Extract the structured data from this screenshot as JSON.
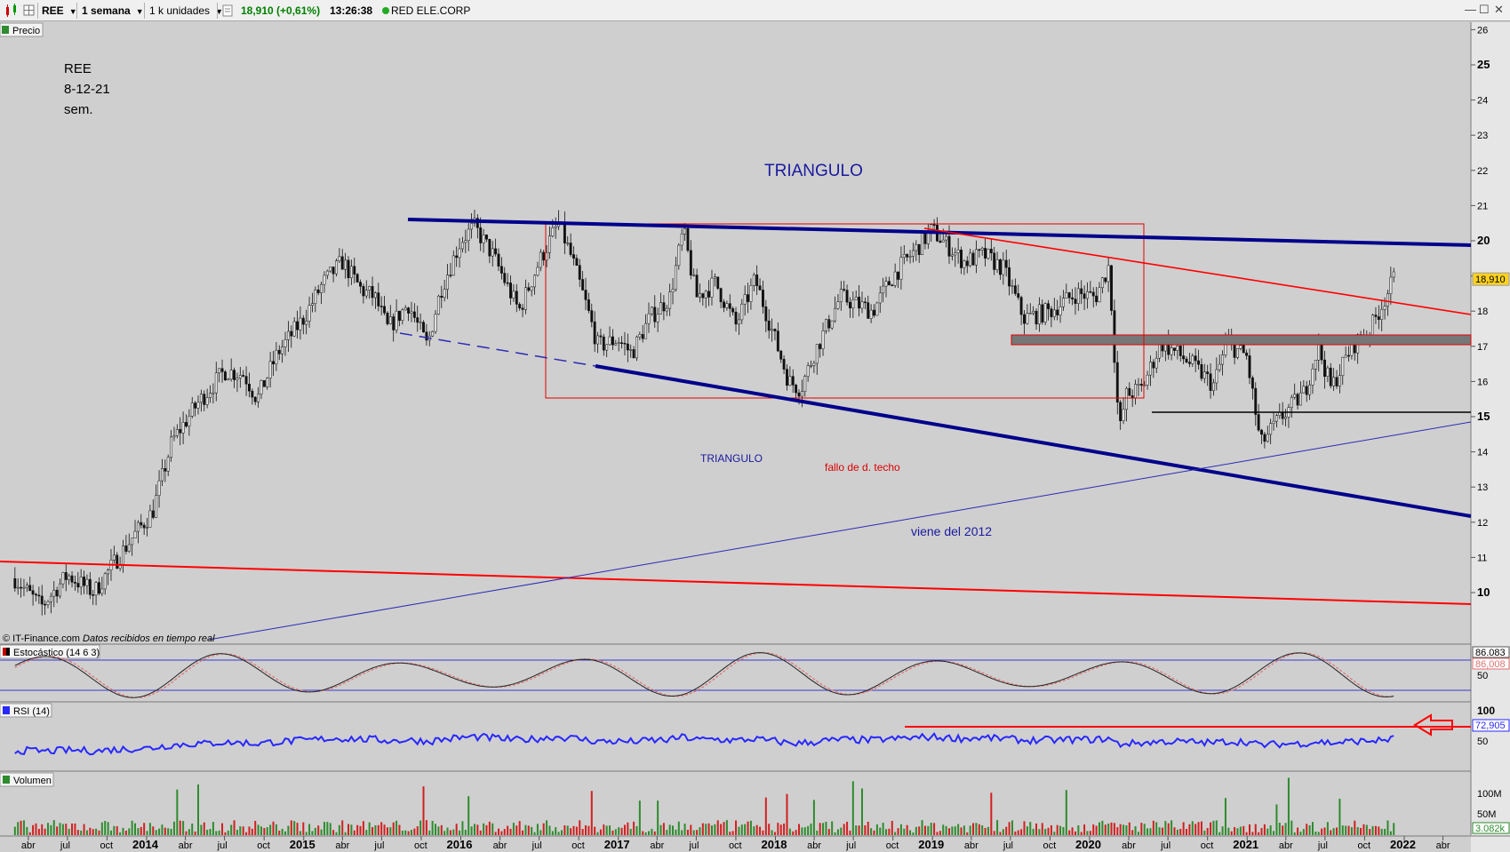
{
  "toolbar": {
    "symbol": "REE",
    "timeframe": "1 semana",
    "units": "1 k unidades",
    "price_change": "18,910 (+0,61%)",
    "time": "13:26:38",
    "instrument": "RED ELE.CORP"
  },
  "panels": {
    "price": "Precio",
    "stoch": "Estocástico (14 6 3)",
    "rsi": "RSI (14)",
    "volume": "Volumen"
  },
  "annotations": {
    "note_line1": "REE",
    "note_line2": "8-12-21",
    "note_line3": "sem.",
    "title_big": "TRIANGULO",
    "title_small": "TRIANGULO",
    "fallo": "fallo de d. techo",
    "viene": "viene del 2012",
    "credit": "© IT-Finance.com",
    "credit_italic": "Datos recibidos en tiempo real"
  },
  "price_axis": {
    "ticks": [
      "26",
      "25",
      "24",
      "23",
      "22",
      "21",
      "20",
      "19",
      "18",
      "17",
      "16",
      "15",
      "14",
      "13",
      "12",
      "11",
      "10"
    ],
    "bold": [
      "25",
      "20",
      "15",
      "10"
    ],
    "last_label": "18,910"
  },
  "stoch_axis": {
    "ticks": [
      "50"
    ],
    "label_k": "86.083",
    "label_d": "86,008"
  },
  "rsi_axis": {
    "ticks": [
      "100",
      "50"
    ],
    "label": "72,905"
  },
  "vol_axis": {
    "ticks": [
      "100M",
      "50M"
    ],
    "label": "3.082k"
  },
  "x_axis": {
    "labels": [
      "abr",
      "jul",
      "oct",
      "2014",
      "abr",
      "jul",
      "oct",
      "2015",
      "abr",
      "jul",
      "oct",
      "2016",
      "abr",
      "jul",
      "oct",
      "2017",
      "abr",
      "jul",
      "oct",
      "2018",
      "abr",
      "jul",
      "oct",
      "2019",
      "abr",
      "jul",
      "oct",
      "2020",
      "abr",
      "jul",
      "oct",
      "2021",
      "abr",
      "jul",
      "oct",
      "2022",
      "abr"
    ],
    "years": [
      "2014",
      "2015",
      "2016",
      "2017",
      "2018",
      "2019",
      "2020",
      "2021",
      "2022"
    ]
  },
  "colors": {
    "background": "#cfcfcf",
    "triangle_line": "#00008b",
    "red_line": "#ff0000",
    "support_line": "#2a2ab5",
    "candle_up": "#2e8b2e",
    "candle_down": "#c80000"
  },
  "chart_data": {
    "type": "candlestick",
    "symbol": "REE",
    "interval": "weekly",
    "ylim": [
      8.6,
      26.2
    ],
    "last_price": 18.91,
    "close_path": [
      [
        "2013-03-01",
        10.4
      ],
      [
        "2013-05-01",
        9.6
      ],
      [
        "2013-07-01",
        10.5
      ],
      [
        "2013-09-01",
        10.0
      ],
      [
        "2013-10-15",
        10.8
      ],
      [
        "2013-12-01",
        11.6
      ],
      [
        "2014-01-15",
        12.3
      ],
      [
        "2014-03-01",
        14.3
      ],
      [
        "2014-05-01",
        15.4
      ],
      [
        "2014-07-01",
        16.3
      ],
      [
        "2014-08-15",
        16.2
      ],
      [
        "2014-09-15",
        15.5
      ],
      [
        "2014-11-01",
        16.8
      ],
      [
        "2015-01-01",
        17.8
      ],
      [
        "2015-02-15",
        18.8
      ],
      [
        "2015-04-01",
        19.4
      ],
      [
        "2015-05-15",
        18.6
      ],
      [
        "2015-06-15",
        18.4
      ],
      [
        "2015-07-15",
        17.5
      ],
      [
        "2015-09-01",
        18.2
      ],
      [
        "2015-10-15",
        17.0
      ],
      [
        "2015-11-15",
        18.6
      ],
      [
        "2016-01-01",
        20.0
      ],
      [
        "2016-02-01",
        20.4
      ],
      [
        "2016-03-15",
        19.6
      ],
      [
        "2016-05-15",
        18.0
      ],
      [
        "2016-07-01",
        19.4
      ],
      [
        "2016-08-15",
        20.5
      ],
      [
        "2016-09-15",
        19.5
      ],
      [
        "2016-10-15",
        18.3
      ],
      [
        "2016-11-15",
        17.0
      ],
      [
        "2016-12-31",
        17.2
      ],
      [
        "2017-02-01",
        16.8
      ],
      [
        "2017-03-15",
        17.8
      ],
      [
        "2017-05-01",
        18.4
      ],
      [
        "2017-06-01",
        20.3
      ],
      [
        "2017-07-01",
        18.4
      ],
      [
        "2017-08-15",
        18.8
      ],
      [
        "2017-10-01",
        17.6
      ],
      [
        "2017-11-15",
        18.9
      ],
      [
        "2017-12-31",
        17.2
      ],
      [
        "2018-02-01",
        16.0
      ],
      [
        "2018-03-01",
        15.8
      ],
      [
        "2018-04-01",
        16.8
      ],
      [
        "2018-06-01",
        18.4
      ],
      [
        "2018-08-15",
        18.0
      ],
      [
        "2018-10-01",
        19.0
      ],
      [
        "2018-12-31",
        20.3
      ],
      [
        "2019-03-15",
        19.4
      ],
      [
        "2019-05-01",
        19.6
      ],
      [
        "2019-06-15",
        19.2
      ],
      [
        "2019-08-01",
        17.8
      ],
      [
        "2019-10-01",
        18.0
      ],
      [
        "2019-12-01",
        18.5
      ],
      [
        "2020-01-15",
        18.4
      ],
      [
        "2020-02-15",
        19.3
      ],
      [
        "2020-03-10",
        14.5
      ],
      [
        "2020-03-25",
        15.6
      ],
      [
        "2020-05-01",
        15.8
      ],
      [
        "2020-06-15",
        17.1
      ],
      [
        "2020-08-15",
        16.6
      ],
      [
        "2020-10-15",
        15.9
      ],
      [
        "2020-11-15",
        17.1
      ],
      [
        "2020-12-31",
        16.7
      ],
      [
        "2021-02-01",
        14.2
      ],
      [
        "2021-03-15",
        14.9
      ],
      [
        "2021-05-15",
        15.7
      ],
      [
        "2021-06-15",
        17.0
      ],
      [
        "2021-07-15",
        15.8
      ],
      [
        "2021-09-01",
        17.0
      ],
      [
        "2021-10-15",
        17.5
      ],
      [
        "2021-12-08",
        18.91
      ]
    ],
    "trendlines": [
      {
        "name": "triangle-top",
        "from": [
          "2015-08-01",
          20.6
        ],
        "to": [
          "2022-06-15",
          19.9
        ]
      },
      {
        "name": "triangle-bottom",
        "from": [
          "2016-10-15",
          16.4
        ],
        "to": [
          "2022-06-15",
          12.15
        ]
      },
      {
        "name": "triangle-bottom-extension",
        "from": [
          "2015-10-01",
          17.3
        ],
        "to": [
          "2016-10-15",
          16.4
        ]
      },
      {
        "name": "red-roof",
        "from": [
          "2019-01-01",
          20.3
        ],
        "to": [
          "2022-06-15",
          17.95
        ]
      },
      {
        "name": "red-long",
        "from": [
          "2013-01-01",
          10.9
        ],
        "to": [
          "2022-06-15",
          9.7
        ]
      },
      {
        "name": "support-2012",
        "from": [
          "2014-05-15",
          8.8
        ],
        "to": [
          "2022-06-15",
          14.85
        ]
      },
      {
        "name": "horizontal-15",
        "from": [
          "2020-05-01",
          15.1
        ],
        "to": [
          "2022-06-15",
          15.1
        ]
      }
    ],
    "boxes": [
      {
        "name": "red-rectangle",
        "x0": "2016-08-01",
        "x1": "2020-04-15",
        "y0": 15.5,
        "y1": 20.5
      },
      {
        "name": "grey-zone",
        "x0": "2019-08-01",
        "x1": "2022-06-15",
        "y0": 17.0,
        "y1": 17.3
      }
    ],
    "stochastic": {
      "params": [
        14,
        6,
        3
      ],
      "k_last": 86.083,
      "d_last": 86.008,
      "levels": [
        80,
        20
      ]
    },
    "rsi": {
      "period": 14,
      "last": 72.905,
      "resistance": 72
    },
    "volume": {
      "last": "3.082k"
    }
  }
}
